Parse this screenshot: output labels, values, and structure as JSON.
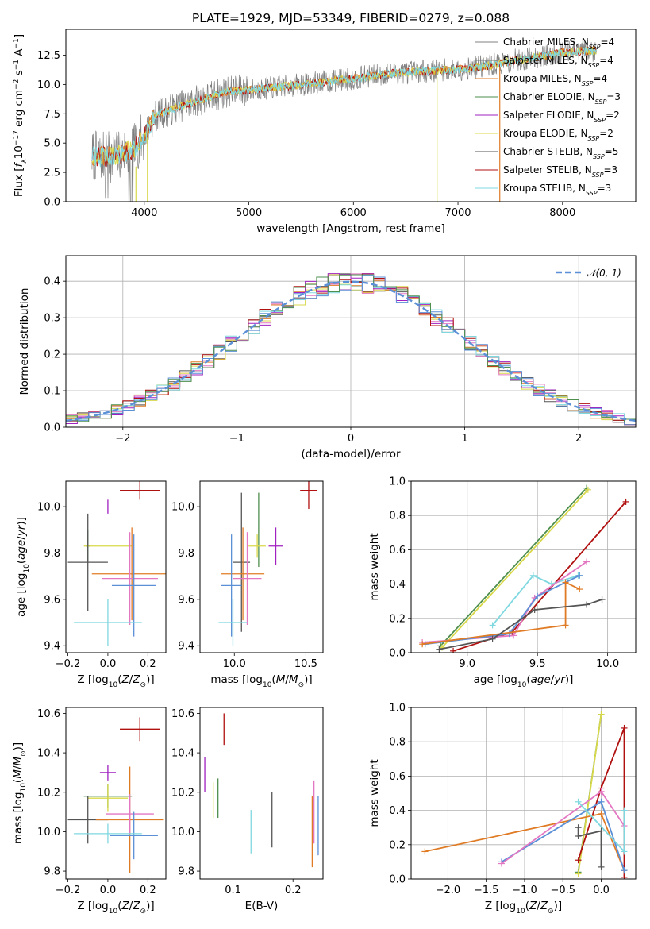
{
  "figure": {
    "title": "PLATE=1929, MJD=53349, FIBERID=0279, z=0.088"
  },
  "palette": {
    "Chabrier MILES": "#808080",
    "Salpeter MILES": "#7f7f7f",
    "Kroupa MILES": "#e07b25",
    "Chabrier ELODIE": "#4e8f4e",
    "Salpeter ELODIE": "#a020c0",
    "Kroupa ELODIE": "#d8d84a",
    "Chabrier STELIB": "#555555",
    "Salpeter STELIB": "#b01010",
    "Kroupa STELIB": "#7fd8e0",
    "gauss": "#5b8fd6"
  },
  "chart_data": [
    {
      "id": "spectrum",
      "type": "line",
      "xlabel": "wavelength [Angstrom, rest frame]",
      "ylabel": "Flux [f_λ10^-17 erg cm^-2 s^-1 A^-1]",
      "xlim": [
        3250,
        8700
      ],
      "ylim": [
        0,
        14.7
      ],
      "xticks": [
        4000,
        5000,
        6000,
        7000,
        8000
      ],
      "yticks": [
        0.0,
        2.5,
        5.0,
        7.5,
        10.0,
        12.5
      ],
      "legend": [
        {
          "label": "Chabrier MILES, N_SSP=4",
          "color": "#808080"
        },
        {
          "label": "Salpeter MILES, N_SSP=4",
          "color": "#7f7f7f"
        },
        {
          "label": "Kroupa MILES, N_SSP=4",
          "color": "#e07b25"
        },
        {
          "label": "Chabrier ELODIE, N_SSP=3",
          "color": "#4e8f4e"
        },
        {
          "label": "Salpeter ELODIE, N_SSP=2",
          "color": "#a020c0"
        },
        {
          "label": "Kroupa ELODIE, N_SSP=2",
          "color": "#d8d84a"
        },
        {
          "label": "Chabrier STELIB, N_SSP=5",
          "color": "#555555"
        },
        {
          "label": "Salpeter STELIB, N_SSP=3",
          "color": "#b01010"
        },
        {
          "label": "Kroupa STELIB, N_SSP=3",
          "color": "#7fd8e0"
        }
      ],
      "continuum": {
        "x": [
          3500,
          3700,
          3900,
          4000,
          4100,
          4300,
          4500,
          4800,
          5000,
          5200,
          5500,
          5800,
          6000,
          6300,
          6600,
          7000,
          7300,
          7500,
          7800,
          8000,
          8300
        ],
        "y": [
          3.9,
          3.8,
          4.5,
          5.6,
          7.3,
          8.0,
          8.6,
          9.4,
          9.5,
          9.7,
          10.0,
          10.3,
          10.5,
          10.9,
          11.1,
          11.3,
          11.6,
          12.0,
          12.4,
          12.7,
          12.9
        ]
      }
    },
    {
      "id": "residuals",
      "type": "line",
      "xlabel": "(data-model)/error",
      "ylabel": "Normed distribution",
      "xlim": [
        -2.5,
        2.5
      ],
      "ylim": [
        0,
        0.47
      ],
      "xticks": [
        -2,
        -1,
        0,
        1,
        2
      ],
      "yticks": [
        0.0,
        0.1,
        0.2,
        0.3,
        0.4
      ],
      "grid": true,
      "legend": [
        {
          "label": "N(0,1)",
          "color": "#5b8fd6"
        }
      ],
      "legend_placement": "top-right"
    },
    {
      "id": "age-vs-Z",
      "type": "scatter",
      "xlabel": "Z [log10(Z/Z⊙)]",
      "ylabel": "age [log10(age/yr)]",
      "xlim": [
        -0.21,
        0.29
      ],
      "ylim": [
        9.37,
        10.11
      ],
      "xticks": [
        -0.2,
        0.0,
        0.2
      ],
      "yticks": [
        9.4,
        9.6,
        9.8,
        10.0
      ],
      "points": [
        {
          "x": 0.16,
          "y": 10.07,
          "xerr": 0.1,
          "yerr": 0.04,
          "color": "#b01010"
        },
        {
          "x": 0.0,
          "y": 10.0,
          "xerr": 0.0,
          "yerr": 0.03,
          "color": "#a020c0"
        },
        {
          "x": -0.1,
          "y": 9.83,
          "xerr": 0.01,
          "yerr": 0.07,
          "color": "#4e8f4e"
        },
        {
          "x": 0.0,
          "y": 9.83,
          "xerr": 0.12,
          "yerr": 0.0,
          "color": "#d8d84a"
        },
        {
          "x": -0.1,
          "y": 9.76,
          "xerr": 0.1,
          "yerr": 0.21,
          "color": "#555555"
        },
        {
          "x": 0.12,
          "y": 9.71,
          "xerr": 0.2,
          "yerr": 0.2,
          "color": "#e07b25"
        },
        {
          "x": 0.11,
          "y": 9.69,
          "xerr": 0.14,
          "yerr": 0.2,
          "color": "#e377c2"
        },
        {
          "x": 0.13,
          "y": 9.66,
          "xerr": 0.11,
          "yerr": 0.22,
          "color": "#5b8fd6"
        },
        {
          "x": 0.0,
          "y": 9.5,
          "xerr": 0.17,
          "yerr": 0.1,
          "color": "#7fd8e0"
        }
      ]
    },
    {
      "id": "age-vs-mass",
      "type": "scatter",
      "xlabel": "mass [log10(M/M⊙)]",
      "ylabel": "",
      "xlim": [
        9.76,
        10.62
      ],
      "ylim": [
        9.37,
        10.11
      ],
      "xticks": [
        10.0,
        10.5
      ],
      "yticks": [
        9.4,
        9.6,
        9.8,
        10.0
      ],
      "points": [
        {
          "x": 10.52,
          "y": 10.07,
          "xerr": 0.06,
          "yerr": 0.08,
          "color": "#b01010"
        },
        {
          "x": 10.29,
          "y": 9.83,
          "xerr": 0.05,
          "yerr": 0.08,
          "color": "#a020c0"
        },
        {
          "x": 10.17,
          "y": 9.9,
          "xerr": 0.0,
          "yerr": 0.16,
          "color": "#4e8f4e"
        },
        {
          "x": 10.16,
          "y": 9.83,
          "xerr": 0.06,
          "yerr": 0.05,
          "color": "#d8d84a"
        },
        {
          "x": 10.05,
          "y": 9.76,
          "xerr": 0.06,
          "yerr": 0.3,
          "color": "#555555"
        },
        {
          "x": 10.06,
          "y": 9.71,
          "xerr": 0.15,
          "yerr": 0.2,
          "color": "#e07b25"
        },
        {
          "x": 10.09,
          "y": 9.69,
          "xerr": 0.1,
          "yerr": 0.2,
          "color": "#e377c2"
        },
        {
          "x": 9.98,
          "y": 9.66,
          "xerr": 0.07,
          "yerr": 0.22,
          "color": "#5b8fd6"
        },
        {
          "x": 9.99,
          "y": 9.5,
          "xerr": 0.1,
          "yerr": 0.1,
          "color": "#7fd8e0"
        }
      ]
    },
    {
      "id": "weight-vs-age",
      "type": "line",
      "xlabel": "age [log10(age/yr)]",
      "ylabel": "mass weight",
      "xlim": [
        8.6,
        10.2
      ],
      "ylim": [
        0,
        1.0
      ],
      "xticks": [
        9.0,
        9.5,
        10.0
      ],
      "yticks": [
        0.0,
        0.2,
        0.4,
        0.6,
        0.8,
        1.0
      ],
      "grid": true,
      "series": [
        {
          "color": "#4e8f4e",
          "x": [
            8.81,
            9.85
          ],
          "y": [
            0.04,
            0.96
          ]
        },
        {
          "color": "#d8d84a",
          "x": [
            8.82,
            9.86
          ],
          "y": [
            0.03,
            0.95
          ]
        },
        {
          "color": "#b01010",
          "x": [
            8.9,
            9.32,
            10.13
          ],
          "y": [
            0.01,
            0.12,
            0.88
          ]
        },
        {
          "color": "#7fd8e0",
          "x": [
            9.18,
            9.47,
            9.6,
            9.79
          ],
          "y": [
            0.16,
            0.45,
            0.4,
            0.45
          ]
        },
        {
          "color": "#e377c2",
          "x": [
            8.68,
            9.33,
            9.48,
            9.85
          ],
          "y": [
            0.06,
            0.1,
            0.32,
            0.53
          ]
        },
        {
          "color": "#5b8fd6",
          "x": [
            8.7,
            9.3,
            9.5,
            9.8
          ],
          "y": [
            0.05,
            0.11,
            0.33,
            0.45
          ]
        },
        {
          "color": "#e07b25",
          "x": [
            8.68,
            9.7,
            9.7,
            9.8
          ],
          "y": [
            0.05,
            0.16,
            0.41,
            0.37
          ]
        },
        {
          "color": "#555555",
          "x": [
            8.8,
            9.18,
            9.48,
            9.85,
            9.96
          ],
          "y": [
            0.02,
            0.08,
            0.25,
            0.28,
            0.31
          ]
        }
      ]
    },
    {
      "id": "mass-vs-Z",
      "type": "scatter",
      "xlabel": "Z [log10(Z/Z⊙)]",
      "ylabel": "mass [log10(M/M⊙)]",
      "xlim": [
        -0.21,
        0.29
      ],
      "ylim": [
        9.76,
        10.63
      ],
      "xticks": [
        -0.2,
        0.0,
        0.2
      ],
      "yticks": [
        9.8,
        10.0,
        10.2,
        10.4,
        10.6
      ],
      "points": [
        {
          "x": 0.16,
          "y": 10.52,
          "xerr": 0.1,
          "yerr": 0.06,
          "color": "#b01010"
        },
        {
          "x": 0.0,
          "y": 10.3,
          "xerr": 0.04,
          "yerr": 0.04,
          "color": "#a020c0"
        },
        {
          "x": 0.0,
          "y": 10.18,
          "xerr": 0.12,
          "yerr": 0.06,
          "color": "#4e8f4e"
        },
        {
          "x": 0.0,
          "y": 10.17,
          "xerr": 0.1,
          "yerr": 0.07,
          "color": "#d8d84a"
        },
        {
          "x": -0.1,
          "y": 10.06,
          "xerr": 0.1,
          "yerr": 0.12,
          "color": "#555555"
        },
        {
          "x": 0.11,
          "y": 10.06,
          "xerr": 0.17,
          "yerr": 0.27,
          "color": "#e07b25"
        },
        {
          "x": 0.11,
          "y": 10.09,
          "xerr": 0.12,
          "yerr": 0.1,
          "color": "#e377c2"
        },
        {
          "x": 0.13,
          "y": 9.98,
          "xerr": 0.12,
          "yerr": 0.12,
          "color": "#5b8fd6"
        },
        {
          "x": 0.0,
          "y": 9.99,
          "xerr": 0.17,
          "yerr": 0.05,
          "color": "#7fd8e0"
        }
      ]
    },
    {
      "id": "mass-vs-EBV",
      "type": "scatter",
      "xlabel": "E(B-V)",
      "ylabel": "",
      "xlim": [
        0.045,
        0.25
      ],
      "ylim": [
        9.76,
        10.63
      ],
      "xticks": [
        0.1,
        0.2
      ],
      "yticks": [
        9.8,
        10.0,
        10.2,
        10.4,
        10.6
      ],
      "points": [
        {
          "x": 0.085,
          "y": 10.52,
          "xerr": 0,
          "yerr": 0.08,
          "color": "#b01010"
        },
        {
          "x": 0.053,
          "y": 10.29,
          "xerr": 0,
          "yerr": 0.09,
          "color": "#a020c0"
        },
        {
          "x": 0.075,
          "y": 10.17,
          "xerr": 0,
          "yerr": 0.1,
          "color": "#4e8f4e"
        },
        {
          "x": 0.067,
          "y": 10.16,
          "xerr": 0,
          "yerr": 0.09,
          "color": "#d8d84a"
        },
        {
          "x": 0.165,
          "y": 10.06,
          "xerr": 0,
          "yerr": 0.14,
          "color": "#555555"
        },
        {
          "x": 0.232,
          "y": 10.0,
          "xerr": 0,
          "yerr": 0.18,
          "color": "#e07b25"
        },
        {
          "x": 0.235,
          "y": 10.1,
          "xerr": 0,
          "yerr": 0.16,
          "color": "#e377c2"
        },
        {
          "x": 0.242,
          "y": 10.03,
          "xerr": 0,
          "yerr": 0.15,
          "color": "#5b8fd6"
        },
        {
          "x": 0.13,
          "y": 10.0,
          "xerr": 0,
          "yerr": 0.11,
          "color": "#7fd8e0"
        }
      ]
    },
    {
      "id": "weight-vs-Z",
      "type": "line",
      "xlabel": "Z [log10(Z/Z⊙)]",
      "ylabel": "mass weight",
      "xlim": [
        -2.48,
        0.45
      ],
      "ylim": [
        0,
        1.0
      ],
      "xticks": [
        -2.0,
        -1.5,
        -1.0,
        -0.5,
        0.0
      ],
      "yticks": [
        0.0,
        0.2,
        0.4,
        0.6,
        0.8,
        1.0
      ],
      "grid": true,
      "series": [
        {
          "color": "#4e8f4e",
          "x": [
            -0.3,
            0.0
          ],
          "y": [
            0.04,
            0.96
          ]
        },
        {
          "color": "#d8d84a",
          "x": [
            -0.3,
            0.0
          ],
          "y": [
            0.03,
            0.96
          ]
        },
        {
          "color": "#b01010",
          "x": [
            -0.3,
            0.0,
            0.3,
            0.3
          ],
          "y": [
            0.11,
            0.53,
            0.88,
            0.01
          ]
        },
        {
          "color": "#e07b25",
          "x": [
            -2.3,
            0.0,
            0.3
          ],
          "y": [
            0.16,
            0.38,
            0.05
          ]
        },
        {
          "color": "#5b8fd6",
          "x": [
            -1.3,
            0.0,
            0.3
          ],
          "y": [
            0.1,
            0.45,
            0.05
          ]
        },
        {
          "color": "#e377c2",
          "x": [
            -1.3,
            0.0,
            0.3
          ],
          "y": [
            0.09,
            0.51,
            0.31
          ]
        },
        {
          "color": "#7fd8e0",
          "x": [
            -0.3,
            0.3,
            0.3
          ],
          "y": [
            0.45,
            0.16,
            0.4
          ]
        },
        {
          "color": "#555555",
          "x": [
            -0.3,
            -0.3,
            0.0,
            0.0
          ],
          "y": [
            0.3,
            0.25,
            0.28,
            0.07
          ]
        }
      ]
    }
  ]
}
